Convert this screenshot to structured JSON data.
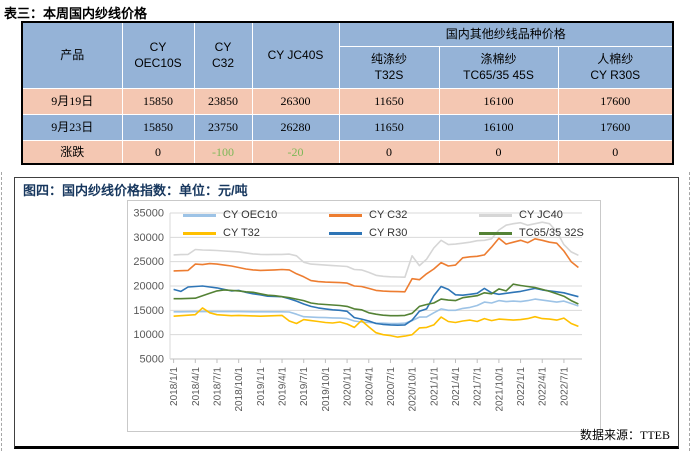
{
  "doc": {
    "table_title": "表三：本周国内纱线价格",
    "source": "数据来源：TTEB"
  },
  "table": {
    "header": {
      "product": "产品",
      "cols": [
        {
          "line1": "CY",
          "line2": "OEC10S"
        },
        {
          "line1": "CY",
          "line2": "C32"
        },
        {
          "line1": "CY JC40S",
          "line2": ""
        }
      ],
      "group": "国内其他纱线品种价格",
      "subcols": [
        {
          "line1": "纯涤纱",
          "line2": "T32S"
        },
        {
          "line1": "涤棉纱",
          "line2": "TC65/35 45S"
        },
        {
          "line1": "人棉纱",
          "line2": "CY R30S"
        }
      ]
    },
    "rows": [
      {
        "label": "9月19日",
        "values": [
          "15850",
          "23850",
          "26300",
          "11650",
          "16100",
          "17600"
        ]
      },
      {
        "label": "9月23日",
        "values": [
          "15850",
          "23750",
          "26280",
          "11650",
          "16100",
          "17600"
        ]
      },
      {
        "label": "涨跌",
        "values": [
          "0",
          "-100",
          "-20",
          "0",
          "0",
          "0"
        ]
      }
    ],
    "colors": {
      "header_bg": "#95B3D7",
      "row_pink": "#F4C7B2",
      "row_blue": "#95B3D7",
      "negative_green": "#7DB857"
    }
  },
  "chart": {
    "title": "图四：国内纱线价格指数：单位：元/吨",
    "title_color": "#17375E"
  },
  "chart_data": {
    "type": "line",
    "title": "图四：国内纱线价格指数：单位：元/吨",
    "ylabel": "元/吨",
    "ylim": [
      5000,
      35000
    ],
    "ytick_step": 5000,
    "ytick_labels": [
      "35000",
      "30000",
      "25000",
      "20000",
      "15000",
      "10000",
      "5000"
    ],
    "xtick_labels": [
      "2018/1/1",
      "2018/4/1",
      "2018/7/1",
      "2018/10/1",
      "2019/1/1",
      "2019/4/1",
      "2019/7/1",
      "2019/10/1",
      "2020/1/1",
      "2020/4/1",
      "2020/7/1",
      "2020/10/1",
      "2021/1/1",
      "2021/4/1",
      "2021/7/1",
      "2021/10/1",
      "2022/1/1",
      "2022/4/1",
      "2022/7/1"
    ],
    "x_start": "2018/1",
    "x_end": "2022/9",
    "x_frequency": "monthly",
    "n_points": 57,
    "grid": true,
    "legend_position": "top-inside",
    "series": [
      {
        "name": "CY OEC10",
        "color": "#9DC3E6",
        "values": [
          14700,
          14700,
          14720,
          14750,
          14750,
          14750,
          14750,
          14750,
          14750,
          14750,
          14720,
          14700,
          14700,
          14700,
          14700,
          14700,
          14650,
          14200,
          13700,
          13600,
          13550,
          13500,
          13450,
          13400,
          13300,
          12800,
          12600,
          12500,
          12400,
          12350,
          12300,
          12300,
          12350,
          12900,
          13600,
          13650,
          14500,
          15300,
          15000,
          15000,
          15400,
          15600,
          16000,
          16700,
          16500,
          17000,
          16800,
          16900,
          16800,
          17000,
          17300,
          17100,
          16900,
          16700,
          16900,
          16400,
          15900
        ]
      },
      {
        "name": "CY C32",
        "color": "#ED7D31",
        "values": [
          23100,
          23150,
          23200,
          24500,
          24400,
          24600,
          24500,
          24300,
          24100,
          23800,
          23500,
          23300,
          23200,
          23250,
          23300,
          23400,
          23300,
          22500,
          21900,
          21100,
          20900,
          20800,
          20750,
          20700,
          20600,
          20000,
          19900,
          19500,
          19100,
          18950,
          18900,
          18850,
          18800,
          21500,
          21300,
          22500,
          23500,
          24800,
          24100,
          24300,
          25800,
          26000,
          26100,
          26400,
          28000,
          29800,
          28600,
          29000,
          29400,
          28900,
          29700,
          29400,
          29000,
          28800,
          27200,
          25000,
          23800
        ]
      },
      {
        "name": "CY JC40",
        "color": "#D6D6D6",
        "values": [
          26400,
          26450,
          26500,
          27500,
          27400,
          27350,
          27300,
          27200,
          27100,
          27000,
          26800,
          26600,
          26500,
          26450,
          26500,
          26500,
          26550,
          26200,
          24900,
          24500,
          24400,
          24300,
          24200,
          24100,
          24000,
          23400,
          23300,
          22800,
          22200,
          22000,
          21900,
          21850,
          21800,
          26200,
          24200,
          25500,
          27800,
          29400,
          28500,
          28600,
          28800,
          29000,
          29300,
          29400,
          29700,
          31500,
          32500,
          32800,
          33000,
          32500,
          32800,
          33100,
          32800,
          31200,
          28500,
          27000,
          26300
        ]
      },
      {
        "name": "CY T32",
        "color": "#FFC000",
        "values": [
          13800,
          13900,
          14000,
          14100,
          15500,
          14500,
          14100,
          14000,
          13900,
          13950,
          13900,
          13850,
          13800,
          13850,
          13900,
          13950,
          12800,
          12300,
          13100,
          12900,
          12700,
          12500,
          12400,
          12600,
          12200,
          11500,
          12900,
          11600,
          10400,
          10000,
          9800,
          9500,
          9700,
          10000,
          11400,
          11500,
          12000,
          13600,
          12700,
          12500,
          12800,
          13000,
          12700,
          13300,
          12900,
          13200,
          13100,
          13000,
          13100,
          13300,
          13700,
          13300,
          13200,
          13000,
          13400,
          12300,
          11700
        ]
      },
      {
        "name": "CY R30",
        "color": "#2E75B6",
        "values": [
          19300,
          18900,
          19800,
          19900,
          20000,
          19800,
          19600,
          19300,
          19000,
          19100,
          18700,
          18400,
          18200,
          17900,
          17850,
          17800,
          17400,
          16900,
          16300,
          15800,
          15500,
          15300,
          15100,
          15000,
          14800,
          13500,
          13200,
          12800,
          12300,
          12100,
          12000,
          11950,
          12000,
          13000,
          14800,
          15300,
          18000,
          19900,
          19300,
          18200,
          18100,
          18300,
          18500,
          19500,
          18600,
          18300,
          18500,
          18700,
          18900,
          19200,
          19500,
          19200,
          19000,
          18800,
          18600,
          18200,
          17800
        ]
      },
      {
        "name": "TC65/35 32S",
        "color": "#548235",
        "values": [
          17400,
          17400,
          17450,
          17500,
          18000,
          18500,
          19000,
          19200,
          19100,
          19000,
          18800,
          18700,
          18400,
          18100,
          18000,
          17800,
          17600,
          17300,
          17000,
          16500,
          16300,
          16200,
          16100,
          16000,
          15800,
          15300,
          15100,
          14500,
          14200,
          14000,
          13900,
          13900,
          13950,
          14400,
          15800,
          16200,
          16500,
          17300,
          17100,
          17000,
          17600,
          17800,
          18000,
          18600,
          18400,
          19400,
          19000,
          20400,
          20100,
          19900,
          19700,
          19300,
          18900,
          18400,
          17900,
          17000,
          16300
        ]
      }
    ]
  }
}
